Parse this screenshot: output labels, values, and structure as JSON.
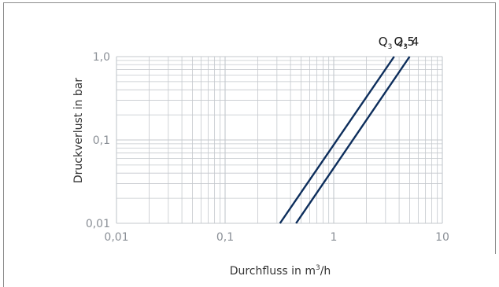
{
  "chart_data": {
    "type": "line",
    "title": "",
    "xlabel": {
      "main": "Durchfluss in m",
      "sup": "3",
      "tail": "/h"
    },
    "ylabel": "Druckverlust in bar",
    "xscale": "log",
    "yscale": "log",
    "xlim": [
      0.01,
      10
    ],
    "ylim": [
      0.01,
      1.0
    ],
    "grid": true,
    "x_ticks": [
      {
        "value": 0.01,
        "label": "0,01"
      },
      {
        "value": 0.1,
        "label": "0,1"
      },
      {
        "value": 1,
        "label": "1"
      },
      {
        "value": 10,
        "label": "10"
      }
    ],
    "y_ticks": [
      {
        "value": 0.01,
        "label": "0,01"
      },
      {
        "value": 0.1,
        "label": "0,1"
      },
      {
        "value": 1.0,
        "label": "1,0"
      }
    ],
    "series": [
      {
        "label": {
          "main": "Q",
          "sub": "3",
          "rest": " 2,5"
        },
        "color": "#0d2e5c",
        "points": [
          {
            "x": 0.32,
            "y": 0.01
          },
          {
            "x": 3.6,
            "y": 1.0
          }
        ]
      },
      {
        "label": {
          "main": "Q",
          "sub": "3",
          "rest": " 4"
        },
        "color": "#0d2e5c",
        "points": [
          {
            "x": 0.45,
            "y": 0.01
          },
          {
            "x": 5.0,
            "y": 1.0
          }
        ]
      }
    ]
  },
  "colors": {
    "grid": "#c4c8cd",
    "frame": "#8c8c8c",
    "series": "#0d2e5c"
  }
}
